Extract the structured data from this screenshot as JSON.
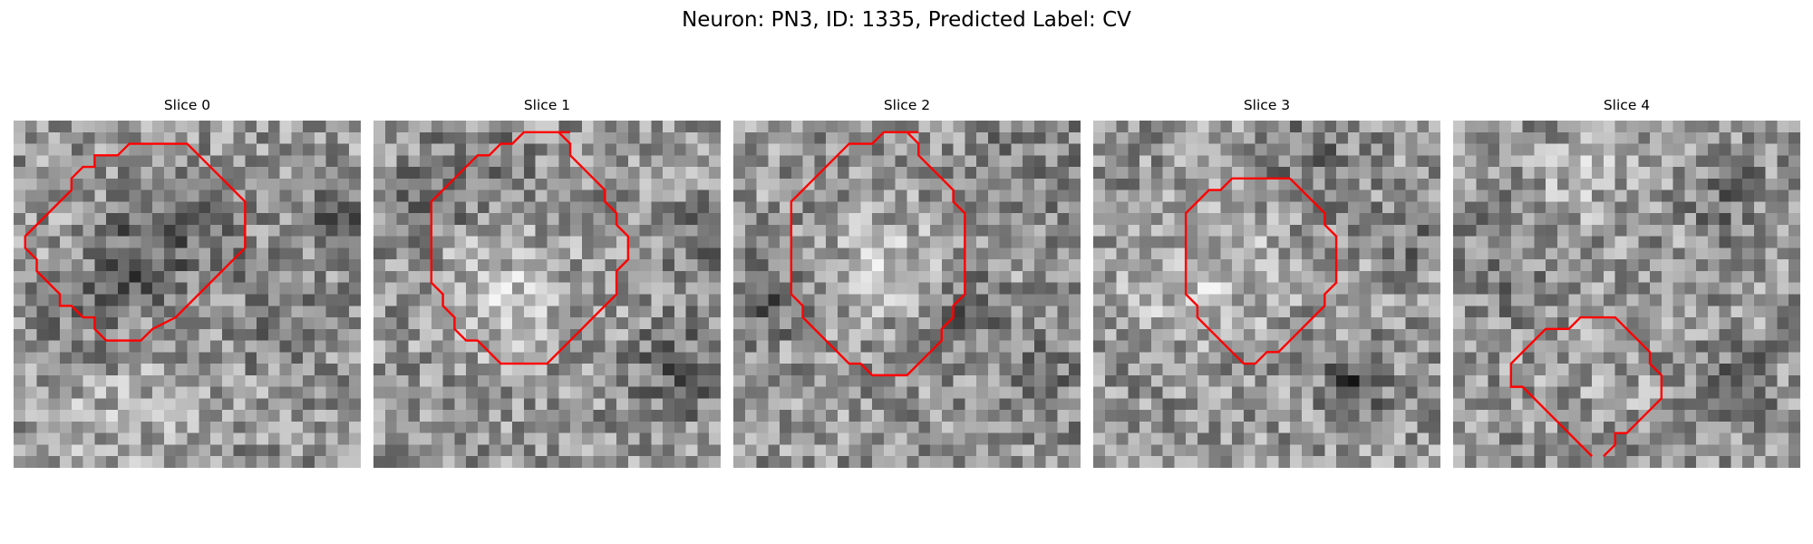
{
  "figure": {
    "title": "Neuron: PN3, ID: 1335, Predicted Label: CV",
    "contour_color": "#ff0000",
    "colormap": "gray"
  },
  "slices": [
    {
      "title": "Slice 0",
      "contour": [
        [
          14,
          2
        ],
        [
          10,
          2
        ],
        [
          9,
          3
        ],
        [
          7,
          3
        ],
        [
          7,
          4
        ],
        [
          6,
          4
        ],
        [
          5,
          5
        ],
        [
          5,
          6
        ],
        [
          4,
          7
        ],
        [
          3,
          8
        ],
        [
          2,
          9
        ],
        [
          1,
          10
        ],
        [
          1,
          11
        ],
        [
          2,
          12
        ],
        [
          2,
          13
        ],
        [
          3,
          14
        ],
        [
          4,
          15
        ],
        [
          4,
          16
        ],
        [
          5,
          16
        ],
        [
          6,
          17
        ],
        [
          7,
          17
        ],
        [
          7,
          18
        ],
        [
          8,
          19
        ],
        [
          11,
          19
        ],
        [
          12,
          18
        ],
        [
          14,
          17
        ],
        [
          15,
          16
        ],
        [
          16,
          15
        ],
        [
          17,
          14
        ],
        [
          18,
          13
        ],
        [
          19,
          12
        ],
        [
          20,
          11
        ],
        [
          20,
          10
        ],
        [
          20,
          9
        ],
        [
          20,
          8
        ],
        [
          20,
          7
        ],
        [
          19,
          6
        ],
        [
          18,
          5
        ],
        [
          17,
          4
        ],
        [
          16,
          3
        ],
        [
          15,
          2
        ],
        [
          14,
          2
        ]
      ]
    },
    {
      "title": "Slice 1",
      "contour": [
        [
          17,
          1
        ],
        [
          15,
          1
        ],
        [
          13,
          1
        ],
        [
          12,
          2
        ],
        [
          11,
          2
        ],
        [
          10,
          3
        ],
        [
          9,
          3
        ],
        [
          8,
          4
        ],
        [
          7,
          5
        ],
        [
          6,
          6
        ],
        [
          5,
          7
        ],
        [
          5,
          8
        ],
        [
          5,
          9
        ],
        [
          5,
          10
        ],
        [
          5,
          11
        ],
        [
          5,
          12
        ],
        [
          5,
          13
        ],
        [
          5,
          14
        ],
        [
          6,
          15
        ],
        [
          6,
          16
        ],
        [
          7,
          17
        ],
        [
          7,
          18
        ],
        [
          8,
          19
        ],
        [
          9,
          19
        ],
        [
          10,
          20
        ],
        [
          11,
          21
        ],
        [
          14,
          21
        ],
        [
          15,
          21
        ],
        [
          16,
          20
        ],
        [
          17,
          19
        ],
        [
          18,
          18
        ],
        [
          19,
          17
        ],
        [
          20,
          16
        ],
        [
          21,
          15
        ],
        [
          21,
          14
        ],
        [
          21,
          13
        ],
        [
          22,
          12
        ],
        [
          22,
          11
        ],
        [
          22,
          10
        ],
        [
          21,
          9
        ],
        [
          21,
          8
        ],
        [
          20,
          7
        ],
        [
          20,
          6
        ],
        [
          19,
          5
        ],
        [
          18,
          4
        ],
        [
          17,
          3
        ],
        [
          17,
          2
        ],
        [
          16,
          1
        ],
        [
          15,
          1
        ]
      ]
    },
    {
      "title": "Slice 2",
      "contour": [
        [
          16,
          1
        ],
        [
          14,
          1
        ],
        [
          13,
          1
        ],
        [
          12,
          2
        ],
        [
          10,
          2
        ],
        [
          9,
          3
        ],
        [
          8,
          4
        ],
        [
          7,
          5
        ],
        [
          6,
          6
        ],
        [
          5,
          7
        ],
        [
          5,
          8
        ],
        [
          5,
          9
        ],
        [
          5,
          10
        ],
        [
          5,
          11
        ],
        [
          5,
          12
        ],
        [
          5,
          13
        ],
        [
          5,
          14
        ],
        [
          5,
          15
        ],
        [
          6,
          16
        ],
        [
          6,
          17
        ],
        [
          7,
          18
        ],
        [
          8,
          19
        ],
        [
          9,
          20
        ],
        [
          10,
          21
        ],
        [
          11,
          21
        ],
        [
          12,
          22
        ],
        [
          15,
          22
        ],
        [
          16,
          21
        ],
        [
          17,
          20
        ],
        [
          18,
          19
        ],
        [
          18,
          18
        ],
        [
          19,
          17
        ],
        [
          19,
          16
        ],
        [
          20,
          15
        ],
        [
          20,
          14
        ],
        [
          20,
          13
        ],
        [
          20,
          12
        ],
        [
          20,
          11
        ],
        [
          20,
          10
        ],
        [
          20,
          9
        ],
        [
          20,
          8
        ],
        [
          19,
          7
        ],
        [
          19,
          6
        ],
        [
          18,
          5
        ],
        [
          17,
          4
        ],
        [
          16,
          3
        ],
        [
          16,
          2
        ],
        [
          15,
          1
        ]
      ]
    },
    {
      "title": "Slice 3",
      "contour": [
        [
          17,
          5
        ],
        [
          13,
          5
        ],
        [
          12,
          5
        ],
        [
          11,
          6
        ],
        [
          10,
          6
        ],
        [
          9,
          7
        ],
        [
          8,
          8
        ],
        [
          8,
          9
        ],
        [
          8,
          10
        ],
        [
          8,
          11
        ],
        [
          8,
          12
        ],
        [
          8,
          13
        ],
        [
          8,
          14
        ],
        [
          8,
          15
        ],
        [
          9,
          16
        ],
        [
          9,
          17
        ],
        [
          10,
          18
        ],
        [
          11,
          19
        ],
        [
          12,
          20
        ],
        [
          13,
          21
        ],
        [
          14,
          21
        ],
        [
          15,
          20
        ],
        [
          16,
          20
        ],
        [
          17,
          19
        ],
        [
          18,
          18
        ],
        [
          19,
          17
        ],
        [
          20,
          16
        ],
        [
          20,
          15
        ],
        [
          21,
          14
        ],
        [
          21,
          13
        ],
        [
          21,
          12
        ],
        [
          21,
          11
        ],
        [
          21,
          10
        ],
        [
          20,
          9
        ],
        [
          20,
          8
        ],
        [
          19,
          7
        ],
        [
          18,
          6
        ],
        [
          17,
          5
        ]
      ]
    },
    {
      "title": "Slice 4",
      "contour": [
        [
          13,
          29
        ],
        [
          14,
          28
        ],
        [
          14,
          27
        ],
        [
          15,
          27
        ],
        [
          16,
          26
        ],
        [
          17,
          25
        ],
        [
          18,
          24
        ],
        [
          18,
          23
        ],
        [
          18,
          22
        ],
        [
          17,
          21
        ],
        [
          17,
          20
        ],
        [
          16,
          19
        ],
        [
          15,
          18
        ],
        [
          14,
          17
        ],
        [
          13,
          17
        ],
        [
          12,
          17
        ],
        [
          11,
          17
        ],
        [
          10,
          18
        ],
        [
          9,
          18
        ],
        [
          8,
          18
        ],
        [
          7,
          19
        ],
        [
          6,
          20
        ],
        [
          5,
          21
        ],
        [
          5,
          22
        ],
        [
          5,
          23
        ],
        [
          6,
          23
        ],
        [
          7,
          24
        ],
        [
          8,
          25
        ],
        [
          9,
          26
        ],
        [
          10,
          27
        ],
        [
          11,
          28
        ],
        [
          12,
          29
        ]
      ]
    }
  ]
}
